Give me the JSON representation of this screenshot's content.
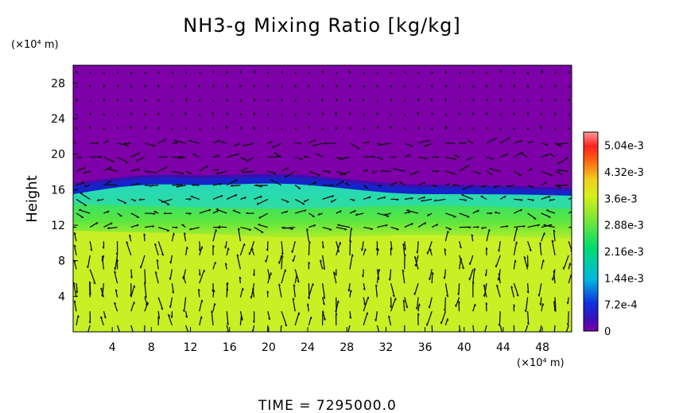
{
  "chart_data": {
    "type": "heatmap",
    "title": "NH3-g Mixing Ratio [kg/kg]",
    "ylabel": "Height",
    "y_unit": "(×10⁴ m)",
    "x_unit": "(×10⁴ m)",
    "xlim": [
      0,
      51
    ],
    "ylim": [
      0,
      30
    ],
    "x_ticks": [
      "4",
      "8",
      "12",
      "16",
      "20",
      "24",
      "28",
      "32",
      "36",
      "40",
      "44",
      "48"
    ],
    "y_ticks": [
      "4",
      "8",
      "12",
      "16",
      "20",
      "24",
      "28"
    ],
    "colorbar": {
      "range": [
        0,
        0.0054
      ],
      "labels": [
        "0",
        "7.2e-4",
        "1.44e-3",
        "2.16e-3",
        "2.88e-3",
        "3.6e-3",
        "4.32e-3",
        "5.04e-3"
      ],
      "colors": [
        "#7d00a8",
        "#00b8e0",
        "#00dc6e",
        "#d8f01a",
        "#f0d020",
        "#ff4000",
        "#ff9a9a"
      ]
    },
    "field_regions": [
      {
        "height_range": [
          0,
          11.5
        ],
        "value": 0.0033
      },
      {
        "height_range": [
          11.5,
          15.5
        ],
        "value": 0.0024
      },
      {
        "height_range": [
          15.5,
          17
        ],
        "value": 0.0006
      },
      {
        "height_range": [
          17,
          30
        ],
        "value": 0
      }
    ],
    "time_label": "TIME",
    "time_value": "7295000.0"
  },
  "colors": {
    "top": "#7d00a8",
    "transition": "#1020c0",
    "cyan": "#20d8c8",
    "green": "#2ee860",
    "lower": "#c8f024"
  }
}
